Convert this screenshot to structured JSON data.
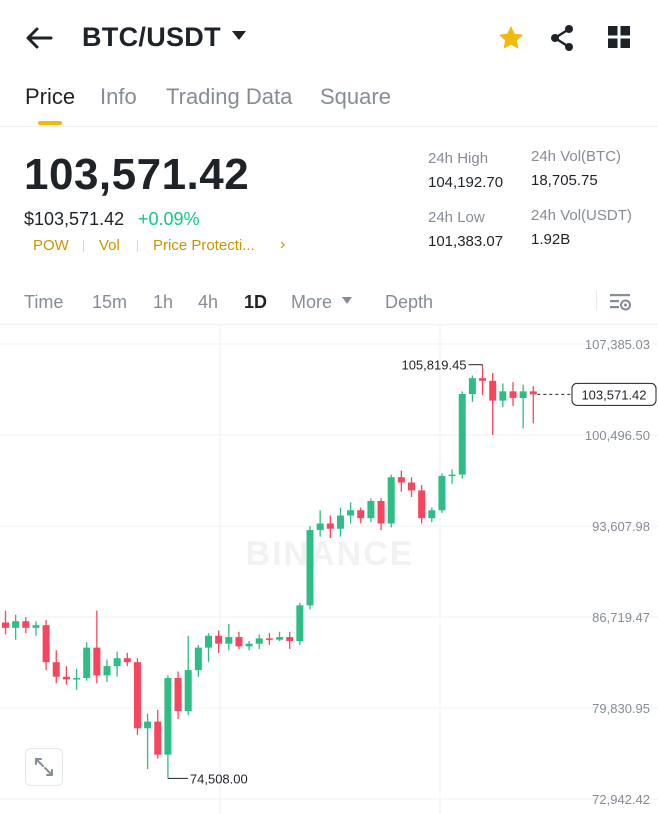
{
  "header": {
    "pair": "BTC/USDT",
    "icons": [
      "back-arrow-icon",
      "chevron-down-icon",
      "star-icon",
      "share-icon",
      "grid-icon"
    ],
    "star_color": "#f0b90b"
  },
  "tabs": [
    {
      "label": "Price",
      "active": true
    },
    {
      "label": "Info",
      "active": false
    },
    {
      "label": "Trading Data",
      "active": false
    },
    {
      "label": "Square",
      "active": false
    }
  ],
  "price": {
    "last": "103,571.42",
    "usd": "$103,571.42",
    "change": "+0.09%",
    "tags": [
      "POW",
      "Vol",
      "Price Protecti..."
    ],
    "tag_chevron": "›"
  },
  "stats": {
    "high_label": "24h High",
    "high_value": "104,192.70",
    "low_label": "24h Low",
    "low_value": "101,383.07",
    "vol_btc_label": "24h Vol(BTC)",
    "vol_btc_value": "18,705.75",
    "vol_usdt_label": "24h Vol(USDT)",
    "vol_usdt_value": "1.92B"
  },
  "timeframes": [
    {
      "label": "Time",
      "active": false
    },
    {
      "label": "15m",
      "active": false
    },
    {
      "label": "1h",
      "active": false
    },
    {
      "label": "4h",
      "active": false
    },
    {
      "label": "1D",
      "active": true
    },
    {
      "label": "More",
      "active": false
    },
    {
      "label": "Depth",
      "active": false
    }
  ],
  "chart_data": {
    "type": "candlestick",
    "interval": "1D",
    "watermark": "BINANCE",
    "ylim": [
      72942.42,
      107385.03
    ],
    "y_ticks": [
      "107,385.03",
      "100,496.50",
      "93,607.98",
      "86,719.47",
      "79,830.95",
      "72,942.42"
    ],
    "high_marker": {
      "label": "105,819.45",
      "value": 105819.45
    },
    "low_marker": {
      "label": "74,508.00",
      "value": 74508.0
    },
    "last_price": {
      "label": "103,571.42",
      "value": 103571.42
    },
    "up_color": "#2ebd85",
    "down_color": "#f6465d",
    "candles": [
      {
        "o": 86300,
        "h": 87200,
        "l": 85400,
        "c": 85900
      },
      {
        "o": 85900,
        "h": 86900,
        "l": 85000,
        "c": 86400
      },
      {
        "o": 86400,
        "h": 86700,
        "l": 85500,
        "c": 85900
      },
      {
        "o": 85900,
        "h": 86400,
        "l": 85300,
        "c": 86100
      },
      {
        "o": 86100,
        "h": 86500,
        "l": 82700,
        "c": 83300
      },
      {
        "o": 83300,
        "h": 84200,
        "l": 81700,
        "c": 82200
      },
      {
        "o": 82200,
        "h": 83000,
        "l": 81600,
        "c": 82000
      },
      {
        "o": 82000,
        "h": 82800,
        "l": 81200,
        "c": 82100
      },
      {
        "o": 82100,
        "h": 84800,
        "l": 81900,
        "c": 84400
      },
      {
        "o": 84400,
        "h": 87200,
        "l": 81700,
        "c": 82300
      },
      {
        "o": 82300,
        "h": 83500,
        "l": 81800,
        "c": 83000
      },
      {
        "o": 83000,
        "h": 84100,
        "l": 82200,
        "c": 83600
      },
      {
        "o": 83600,
        "h": 84000,
        "l": 83000,
        "c": 83300
      },
      {
        "o": 83300,
        "h": 83600,
        "l": 77800,
        "c": 78300
      },
      {
        "o": 78300,
        "h": 79400,
        "l": 75200,
        "c": 78800
      },
      {
        "o": 78800,
        "h": 79700,
        "l": 76000,
        "c": 76300
      },
      {
        "o": 76300,
        "h": 82300,
        "l": 74508,
        "c": 82100
      },
      {
        "o": 82100,
        "h": 82600,
        "l": 79000,
        "c": 79600
      },
      {
        "o": 79600,
        "h": 85300,
        "l": 79300,
        "c": 82700
      },
      {
        "o": 82700,
        "h": 84600,
        "l": 82200,
        "c": 84400
      },
      {
        "o": 84400,
        "h": 85500,
        "l": 83300,
        "c": 85300
      },
      {
        "o": 85300,
        "h": 85700,
        "l": 84000,
        "c": 84700
      },
      {
        "o": 84700,
        "h": 86200,
        "l": 84200,
        "c": 85200
      },
      {
        "o": 85200,
        "h": 85600,
        "l": 84300,
        "c": 84500
      },
      {
        "o": 84500,
        "h": 84900,
        "l": 84200,
        "c": 84700
      },
      {
        "o": 84700,
        "h": 85400,
        "l": 84300,
        "c": 85100
      },
      {
        "o": 85100,
        "h": 85500,
        "l": 84600,
        "c": 85000
      },
      {
        "o": 85000,
        "h": 85600,
        "l": 84900,
        "c": 85200
      },
      {
        "o": 85200,
        "h": 85600,
        "l": 84300,
        "c": 84900
      },
      {
        "o": 84900,
        "h": 87800,
        "l": 84600,
        "c": 87600
      },
      {
        "o": 87600,
        "h": 93600,
        "l": 87300,
        "c": 93300
      },
      {
        "o": 93300,
        "h": 94800,
        "l": 92800,
        "c": 93800
      },
      {
        "o": 93800,
        "h": 94400,
        "l": 92700,
        "c": 93400
      },
      {
        "o": 93400,
        "h": 95000,
        "l": 92800,
        "c": 94400
      },
      {
        "o": 94400,
        "h": 95400,
        "l": 93800,
        "c": 94800
      },
      {
        "o": 94800,
        "h": 95000,
        "l": 93800,
        "c": 94200
      },
      {
        "o": 94200,
        "h": 95700,
        "l": 93900,
        "c": 95500
      },
      {
        "o": 95500,
        "h": 95700,
        "l": 93300,
        "c": 93800
      },
      {
        "o": 93800,
        "h": 97500,
        "l": 93500,
        "c": 97300
      },
      {
        "o": 97300,
        "h": 97800,
        "l": 96200,
        "c": 96900
      },
      {
        "o": 96900,
        "h": 97300,
        "l": 95800,
        "c": 96300
      },
      {
        "o": 96300,
        "h": 96700,
        "l": 93800,
        "c": 94200
      },
      {
        "o": 94200,
        "h": 95000,
        "l": 93900,
        "c": 94800
      },
      {
        "o": 94800,
        "h": 97600,
        "l": 94600,
        "c": 97400
      },
      {
        "o": 97400,
        "h": 97900,
        "l": 96800,
        "c": 97500
      },
      {
        "o": 97500,
        "h": 103800,
        "l": 97200,
        "c": 103600
      },
      {
        "o": 103600,
        "h": 105000,
        "l": 103000,
        "c": 104800
      },
      {
        "o": 104800,
        "h": 105819.45,
        "l": 103500,
        "c": 104600
      },
      {
        "o": 104600,
        "h": 105200,
        "l": 100500,
        "c": 103100
      },
      {
        "o": 103100,
        "h": 104400,
        "l": 102600,
        "c": 103800
      },
      {
        "o": 103800,
        "h": 104500,
        "l": 102700,
        "c": 103300
      },
      {
        "o": 103300,
        "h": 104300,
        "l": 101000,
        "c": 103800
      },
      {
        "o": 103800,
        "h": 104192.7,
        "l": 101383.07,
        "c": 103571.42
      }
    ]
  }
}
